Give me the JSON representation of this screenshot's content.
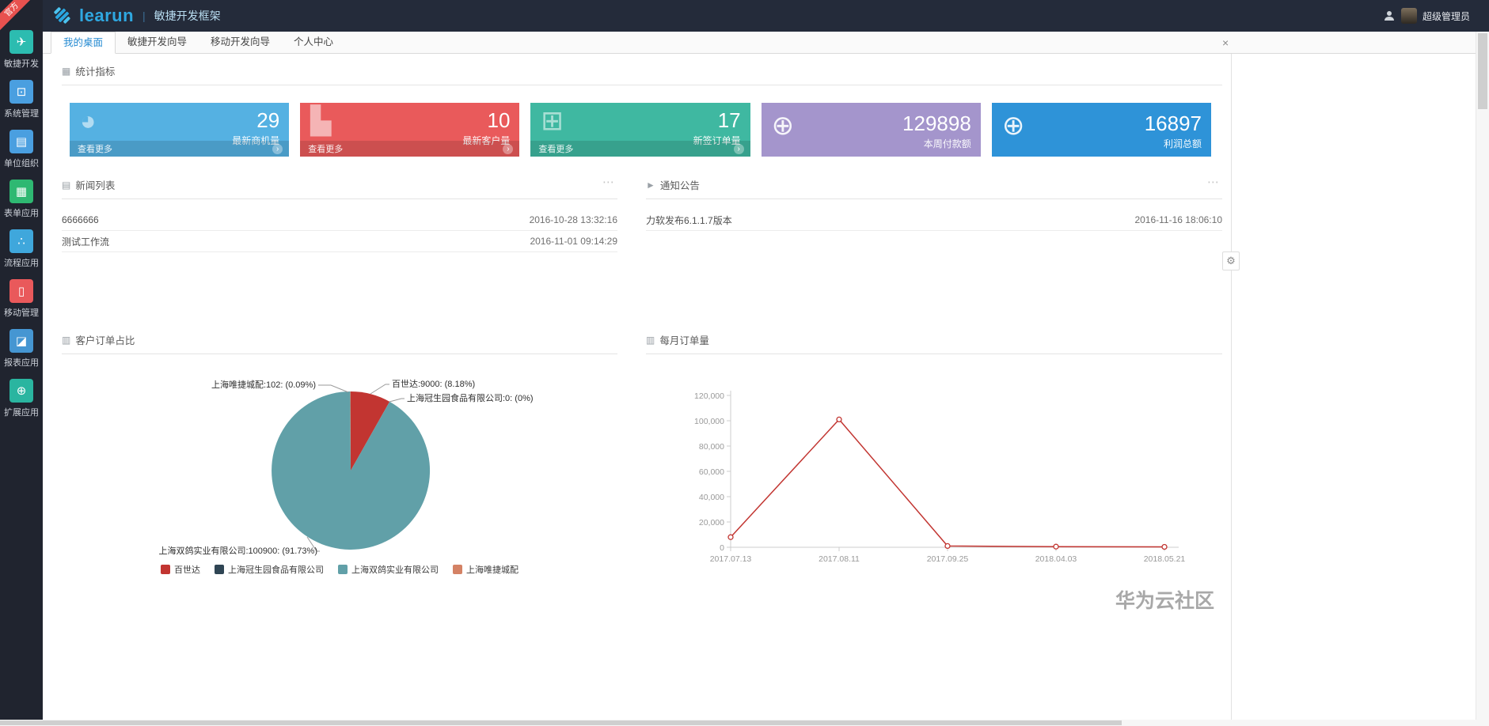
{
  "ribbon": "官方",
  "header": {
    "logo": "learun",
    "divider": "|",
    "title": "敏捷开发框架",
    "user": "超级管理员"
  },
  "sidebar": {
    "items": [
      {
        "label": "敏捷开发",
        "icon": "paper-plane-icon",
        "glyph": "✈",
        "color": "#2cbcb0"
      },
      {
        "label": "系统管理",
        "icon": "monitor-icon",
        "glyph": "⊡",
        "color": "#4a9fe0"
      },
      {
        "label": "单位组织",
        "icon": "org-book-icon",
        "glyph": "▤",
        "color": "#4a9fe0"
      },
      {
        "label": "表单应用",
        "icon": "table-grid-icon",
        "glyph": "▦",
        "color": "#2eb872"
      },
      {
        "label": "流程应用",
        "icon": "share-icon",
        "glyph": "∴",
        "color": "#3fa7dc"
      },
      {
        "label": "移动管理",
        "icon": "mobile-icon",
        "glyph": "▯",
        "color": "#e9595b"
      },
      {
        "label": "报表应用",
        "icon": "report-chart-icon",
        "glyph": "◪",
        "color": "#4596d2"
      },
      {
        "label": "扩展应用",
        "icon": "globe-icon",
        "glyph": "⊕",
        "color": "#2ab5a0"
      }
    ]
  },
  "tabs": {
    "items": [
      {
        "label": "我的桌面",
        "active": true
      },
      {
        "label": "敏捷开发向导",
        "active": false
      },
      {
        "label": "移动开发向导",
        "active": false
      },
      {
        "label": "个人中心",
        "active": false
      }
    ]
  },
  "icons": {
    "stats": "▦",
    "news": "▤",
    "notice": "►",
    "pie": "▥",
    "line": "▥",
    "menu": "⋯",
    "gear": "⚙",
    "close": "×",
    "arrow": "›"
  },
  "stats": {
    "title": "统计指标",
    "cards": [
      {
        "value": "29",
        "label": "最新商机量",
        "more": "查看更多",
        "color": "#55b1e2",
        "icon": "pie-stat-icon",
        "glyph": "◕"
      },
      {
        "value": "10",
        "label": "最新客户量",
        "more": "查看更多",
        "color": "#e95a5b",
        "icon": "bar-stat-icon",
        "glyph": "▙"
      },
      {
        "value": "17",
        "label": "新签订单量",
        "more": "查看更多",
        "color": "#3fb8a1",
        "icon": "windows-icon",
        "glyph": "⊞"
      },
      {
        "value": "129898",
        "label": "本周付款额",
        "more": "",
        "color": "#a495cc",
        "icon": "globe-icon",
        "glyph": "⊕"
      },
      {
        "value": "16897",
        "label": "利润总额",
        "more": "",
        "color": "#2e93d8",
        "icon": "globe-icon",
        "glyph": "⊕"
      }
    ]
  },
  "news": {
    "title": "新闻列表",
    "rows": [
      {
        "title": "6666666",
        "time": "2016-10-28 13:32:16"
      },
      {
        "title": "测试工作流",
        "time": "2016-11-01 09:14:29"
      }
    ]
  },
  "notice": {
    "title": "通知公告",
    "rows": [
      {
        "title": "力软发布6.1.1.7版本",
        "time": "2016-11-16 18:06:10"
      }
    ]
  },
  "charts": {
    "pie": {
      "type": "pie",
      "title": "客户订单占比",
      "slices": [
        {
          "name": "百世达",
          "value": 9000,
          "pct": 8.18,
          "color": "#c23531",
          "label": "百世达:9000: (8.18%)"
        },
        {
          "name": "上海冠生园食品有限公司",
          "value": 0,
          "pct": 0,
          "color": "#2f4554",
          "label": "上海冠生园食品有限公司:0: (0%)"
        },
        {
          "name": "上海双鸽实业有限公司",
          "value": 100900,
          "pct": 91.73,
          "color": "#61a0a8",
          "label": "上海双鸽实业有限公司:100900: (91.73%)"
        },
        {
          "name": "上海唯捷城配",
          "value": 102,
          "pct": 0.09,
          "color": "#d48265",
          "label": "上海唯捷城配:102: (0.09%)"
        }
      ]
    },
    "line": {
      "type": "line",
      "title": "每月订单量",
      "color": "#c23531",
      "x": [
        "2017.07.13",
        "2017.08.11",
        "2017.09.25",
        "2018.04.03",
        "2018.05.21"
      ],
      "values": [
        8000,
        101000,
        1000,
        500,
        300
      ],
      "ylim": [
        0,
        120000
      ],
      "yticks": [
        "0",
        "20,000",
        "40,000",
        "60,000",
        "80,000",
        "100,000",
        "120,000"
      ]
    }
  },
  "watermark": "华为云社区"
}
